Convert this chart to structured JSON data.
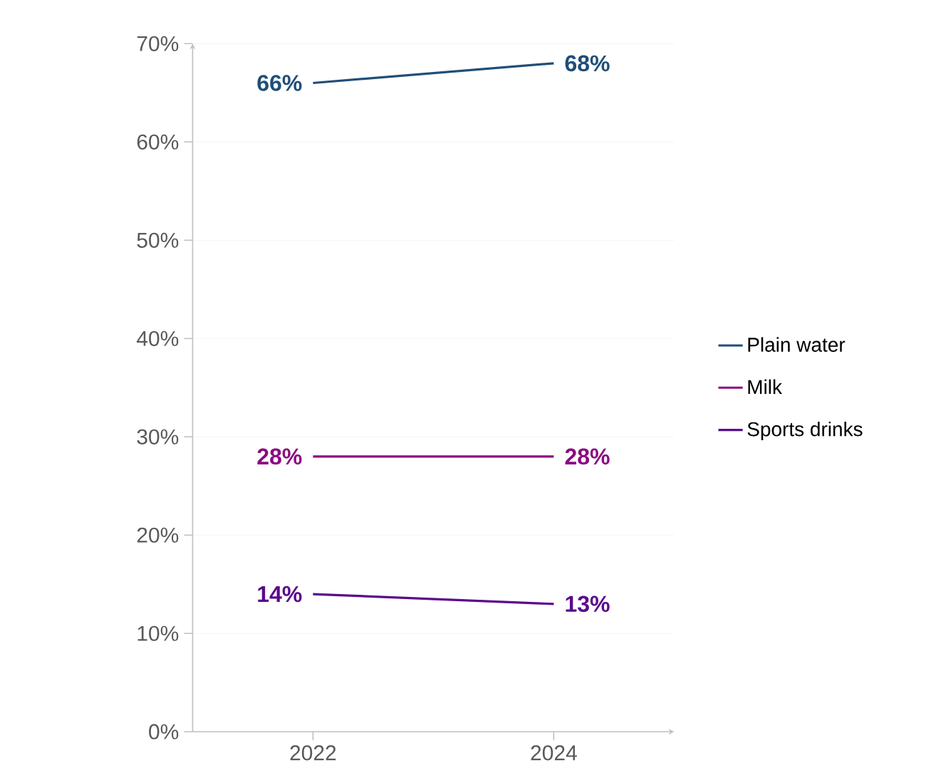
{
  "chart_data": {
    "type": "line",
    "categories": [
      "2022",
      "2024"
    ],
    "series": [
      {
        "name": "Plain water",
        "color": "#1f4e79",
        "values": [
          66,
          68
        ],
        "value_labels": [
          "66%",
          "68%"
        ]
      },
      {
        "name": "Milk",
        "color": "#8b0a80",
        "values": [
          28,
          28
        ],
        "value_labels": [
          "28%",
          "28%"
        ]
      },
      {
        "name": "Sports drinks",
        "color": "#5a0a8c",
        "values": [
          14,
          13
        ],
        "value_labels": [
          "14%",
          "13%"
        ]
      }
    ],
    "ylim": [
      0,
      70
    ],
    "yticks": [
      {
        "value": 0,
        "label": "0%"
      },
      {
        "value": 10,
        "label": "10%"
      },
      {
        "value": 20,
        "label": "20%"
      },
      {
        "value": 30,
        "label": "30%"
      },
      {
        "value": 40,
        "label": "40%"
      },
      {
        "value": 50,
        "label": "50%"
      },
      {
        "value": 60,
        "label": "60%"
      },
      {
        "value": 70,
        "label": "70%"
      }
    ],
    "grid": "y",
    "legend": "right",
    "marker": "none",
    "line_style": "solid"
  }
}
